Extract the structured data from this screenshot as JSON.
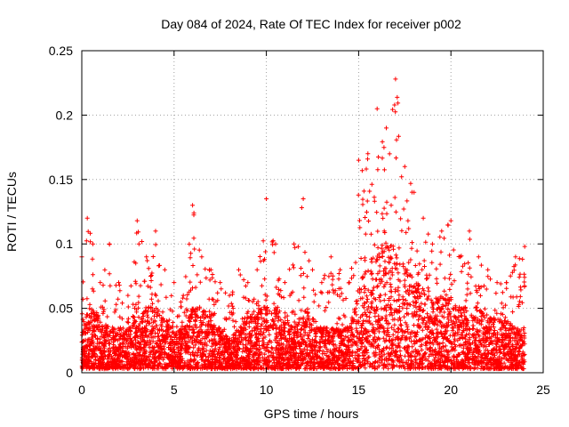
{
  "chart_data": {
    "type": "scatter",
    "title": "Day 084 of 2024, Rate Of TEC Index for receiver p002",
    "xlabel": "GPS time / hours",
    "ylabel": "ROTI / TECUs",
    "xlim": [
      0,
      25
    ],
    "ylim": [
      0,
      0.25
    ],
    "xticks": [
      0,
      5,
      10,
      15,
      20,
      25
    ],
    "yticks": [
      0,
      0.05,
      0.1,
      0.15,
      0.2,
      0.25
    ],
    "xtick_labels": [
      "0",
      "5",
      "10",
      "15",
      "20",
      "25"
    ],
    "ytick_labels": [
      "0",
      "0.05",
      "0.1",
      "0.15",
      "0.2",
      "0.25"
    ],
    "grid": true,
    "marker": "+",
    "color": "#ff0000",
    "series": [
      {
        "name": "ROTI",
        "x_range": [
          0,
          24
        ],
        "note": "dense time series of individual samples across the full day; envelope below summarizes observed maxima per time window",
        "envelope": {
          "x": [
            0,
            0.3,
            0.6,
            1,
            1.5,
            2,
            2.5,
            3,
            3.5,
            4,
            4.5,
            5,
            5.5,
            6,
            6.5,
            7,
            7.5,
            8,
            8.5,
            9,
            9.5,
            10,
            10.5,
            11,
            11.5,
            12,
            12.5,
            13,
            13.5,
            14,
            14.5,
            15,
            15.5,
            16,
            16.5,
            17,
            17.5,
            18,
            18.5,
            19,
            19.5,
            20,
            20.5,
            21,
            21.5,
            22,
            22.5,
            23,
            23.5,
            24
          ],
          "y_max": [
            0.09,
            0.12,
            0.1,
            0.07,
            0.1,
            0.07,
            0.06,
            0.118,
            0.09,
            0.11,
            0.08,
            0.07,
            0.06,
            0.13,
            0.09,
            0.08,
            0.07,
            0.06,
            0.08,
            0.07,
            0.08,
            0.135,
            0.1,
            0.07,
            0.1,
            0.135,
            0.08,
            0.07,
            0.09,
            0.08,
            0.07,
            0.165,
            0.17,
            0.205,
            0.19,
            0.228,
            0.16,
            0.14,
            0.12,
            0.1,
            0.11,
            0.118,
            0.09,
            0.11,
            0.09,
            0.08,
            0.07,
            0.07,
            0.09,
            0.098
          ],
          "y_typical": [
            0.02,
            0.03,
            0.03,
            0.025,
            0.02,
            0.02,
            0.02,
            0.025,
            0.03,
            0.03,
            0.025,
            0.02,
            0.02,
            0.03,
            0.03,
            0.025,
            0.02,
            0.015,
            0.02,
            0.025,
            0.03,
            0.03,
            0.03,
            0.025,
            0.02,
            0.03,
            0.025,
            0.02,
            0.02,
            0.02,
            0.02,
            0.04,
            0.05,
            0.06,
            0.06,
            0.06,
            0.05,
            0.045,
            0.04,
            0.035,
            0.035,
            0.035,
            0.03,
            0.03,
            0.03,
            0.025,
            0.025,
            0.025,
            0.02,
            0.02
          ]
        }
      }
    ]
  }
}
